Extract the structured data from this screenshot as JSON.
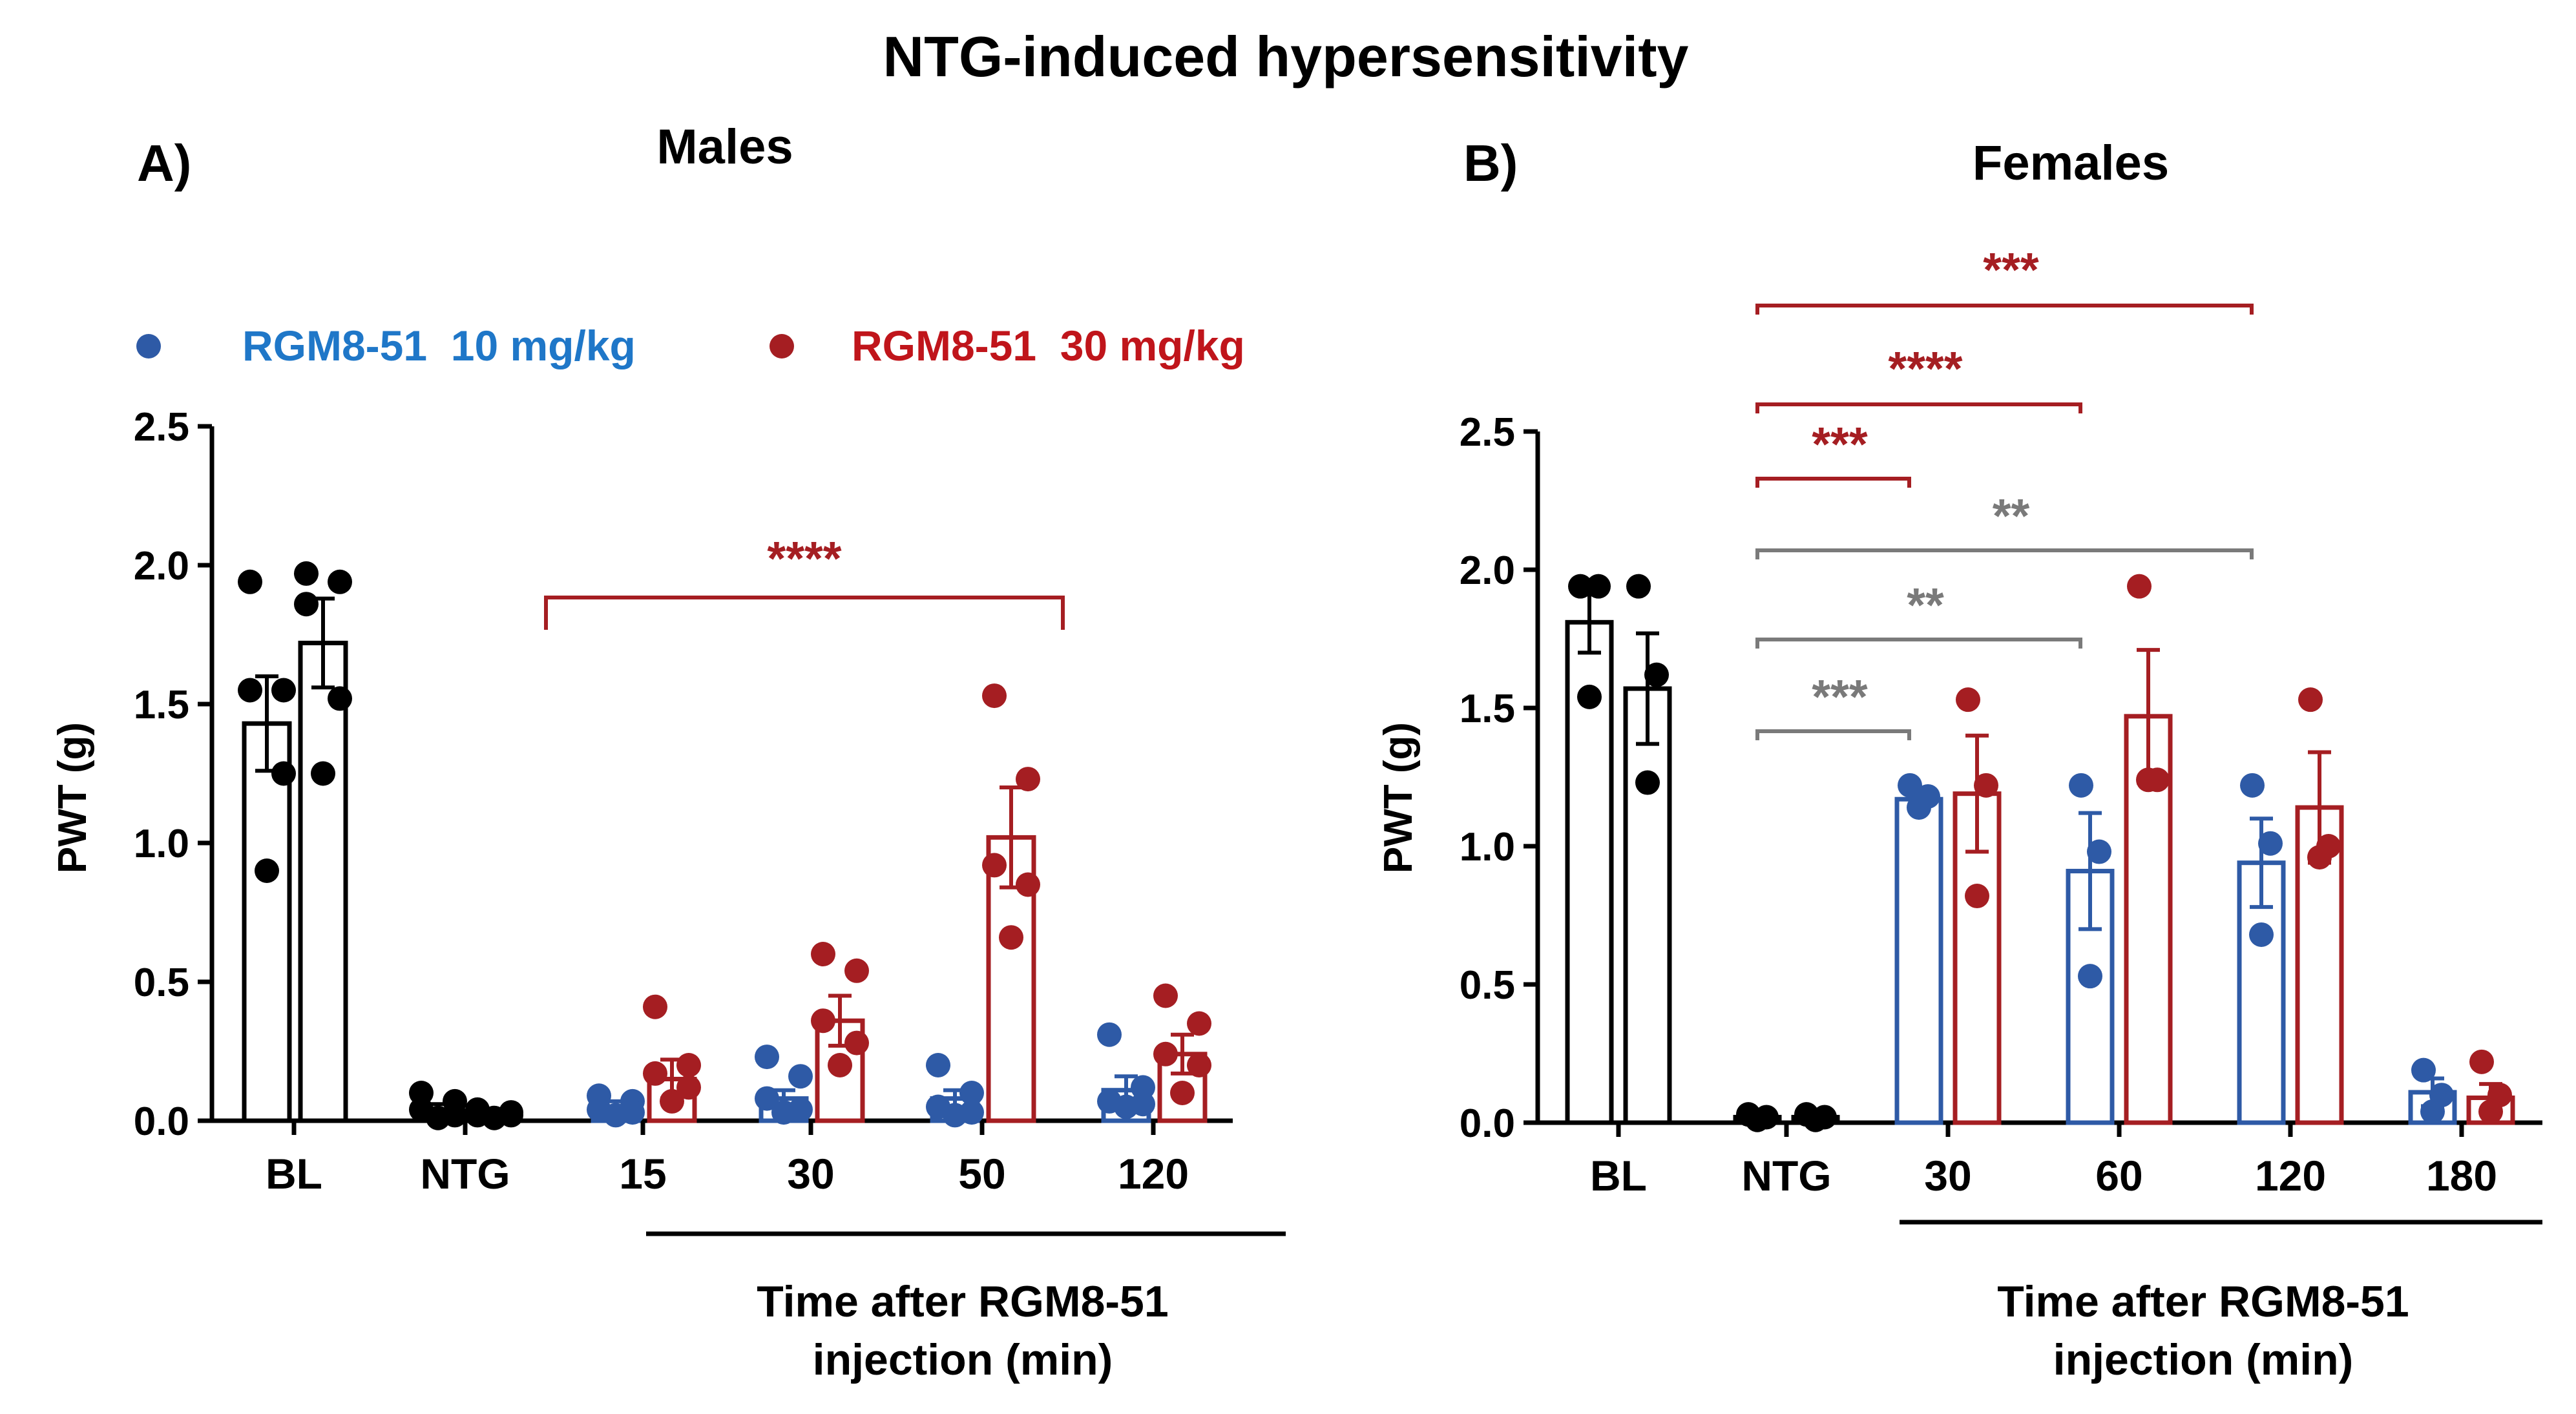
{
  "figure_title": "NTG-induced hypersensitivity",
  "legend": [
    {
      "label": "RGM8-51  10 mg/kg",
      "color": "#2e5aa6",
      "text_color": "#1f77c8"
    },
    {
      "label": "RGM8-51  30 mg/kg",
      "color": "#a51e22",
      "text_color": "#c0151b"
    }
  ],
  "colors": {
    "black": "#000000",
    "blue": "#2e5aa6",
    "red": "#a51e22",
    "gray": "#7a7a7a"
  },
  "chart_data": [
    {
      "type": "bar",
      "panel_label": "A)",
      "title": "Males",
      "ylabel": "PWT (g)",
      "ylim": [
        0,
        2.5
      ],
      "yticks": [
        "0.0",
        "0.5",
        "1.0",
        "1.5",
        "2.0",
        "2.5"
      ],
      "categories": [
        "BL",
        "NTG",
        "15",
        "30",
        "50",
        "120"
      ],
      "xlabel_line1": "Time after RGM8-51",
      "xlabel_line2": "injection (min)",
      "underline_from_category": 2,
      "series": [
        {
          "name": "RGM8-51  10 mg/kg",
          "color_key": "blue",
          "values": [
            1.43,
            0.04,
            0.05,
            0.08,
            0.08,
            0.11
          ],
          "sem": [
            0.17,
            0.02,
            0.02,
            0.03,
            0.03,
            0.05
          ],
          "points": [
            [
              1.94,
              1.55,
              1.55,
              1.25,
              0.9
            ],
            [
              0.1,
              0.07,
              0.04,
              0.02,
              0.01
            ],
            [
              0.09,
              0.07,
              0.04,
              0.03,
              0.02
            ],
            [
              0.23,
              0.16,
              0.08,
              0.04,
              0.03
            ],
            [
              0.2,
              0.1,
              0.05,
              0.03,
              0.02
            ],
            [
              0.31,
              0.12,
              0.07,
              0.06,
              0.05
            ]
          ],
          "point_color_keys": [
            "black",
            "black",
            "blue",
            "blue",
            "blue",
            "blue"
          ],
          "bar_color_keys": [
            "black",
            "black",
            "blue",
            "blue",
            "blue",
            "blue"
          ]
        },
        {
          "name": "RGM8-51  30 mg/kg",
          "color_key": "red",
          "values": [
            1.72,
            0.02,
            0.15,
            0.36,
            1.02,
            0.24
          ],
          "sem": [
            0.16,
            0.01,
            0.07,
            0.09,
            0.18,
            0.07
          ],
          "points": [
            [
              1.97,
              1.94,
              1.86,
              1.52,
              1.25
            ],
            [
              0.04,
              0.03,
              0.02,
              0.02,
              0.01
            ],
            [
              0.41,
              0.2,
              0.17,
              0.12,
              0.07
            ],
            [
              0.6,
              0.54,
              0.36,
              0.28,
              0.2
            ],
            [
              1.53,
              1.23,
              0.92,
              0.85,
              0.66
            ],
            [
              0.45,
              0.35,
              0.24,
              0.2,
              0.1
            ]
          ],
          "point_color_keys": [
            "black",
            "black",
            "red",
            "red",
            "red",
            "red"
          ],
          "bar_color_keys": [
            "black",
            "black",
            "red",
            "red",
            "red",
            "red"
          ]
        }
      ],
      "significance": [
        {
          "label": "****",
          "from_category": 2,
          "to_category": 4,
          "color_key": "red",
          "style": "bracket"
        }
      ]
    },
    {
      "type": "bar",
      "panel_label": "B)",
      "title": "Females",
      "ylabel": "PWT (g)",
      "ylim": [
        0,
        2.5
      ],
      "yticks": [
        "0.0",
        "0.5",
        "1.0",
        "1.5",
        "2.0",
        "2.5"
      ],
      "categories": [
        "BL",
        "NTG",
        "30",
        "60",
        "120",
        "180"
      ],
      "xlabel_line1": "Time after RGM8-51",
      "xlabel_line2": "injection (min)",
      "underline_from_category": 2,
      "series": [
        {
          "name": "RGM8-51  10 mg/kg",
          "color_key": "blue",
          "values": [
            1.81,
            0.02,
            1.17,
            0.91,
            0.94,
            0.11
          ],
          "sem": [
            0.11,
            0.01,
            0.03,
            0.21,
            0.16,
            0.05
          ],
          "points": [
            [
              1.94,
              1.94,
              1.54
            ],
            [
              0.03,
              0.02,
              0.01
            ],
            [
              1.22,
              1.18,
              1.14
            ],
            [
              1.22,
              0.98,
              0.53
            ],
            [
              1.22,
              1.01,
              0.68
            ],
            [
              0.19,
              0.1,
              0.04
            ]
          ],
          "point_color_keys": [
            "black",
            "black",
            "blue",
            "blue",
            "blue",
            "blue"
          ],
          "bar_color_keys": [
            "black",
            "black",
            "blue",
            "blue",
            "blue",
            "blue"
          ]
        },
        {
          "name": "RGM8-51  30 mg/kg",
          "color_key": "red",
          "values": [
            1.57,
            0.02,
            1.19,
            1.47,
            1.14,
            0.09
          ],
          "sem": [
            0.2,
            0.01,
            0.21,
            0.24,
            0.2,
            0.05
          ],
          "points": [
            [
              1.94,
              1.62,
              1.23
            ],
            [
              0.03,
              0.02,
              0.01
            ],
            [
              1.53,
              1.22,
              0.82
            ],
            [
              1.94,
              1.24,
              1.24
            ],
            [
              1.53,
              1.0,
              0.96
            ],
            [
              0.22,
              0.1,
              0.04
            ]
          ],
          "point_color_keys": [
            "black",
            "black",
            "red",
            "red",
            "red",
            "red"
          ],
          "bar_color_keys": [
            "black",
            "black",
            "red",
            "red",
            "red",
            "red"
          ]
        }
      ],
      "significance": [
        {
          "label": "***",
          "from_category": 1,
          "to_category": 4,
          "color_key": "red",
          "style": "line"
        },
        {
          "label": "****",
          "from_category": 1,
          "to_category": 3,
          "color_key": "red",
          "style": "line"
        },
        {
          "label": "***",
          "from_category": 1,
          "to_category": 2,
          "color_key": "red",
          "style": "line"
        },
        {
          "label": "**",
          "from_category": 1,
          "to_category": 4,
          "color_key": "gray",
          "style": "line"
        },
        {
          "label": "**",
          "from_category": 1,
          "to_category": 3,
          "color_key": "gray",
          "style": "line"
        },
        {
          "label": "***",
          "from_category": 1,
          "to_category": 2,
          "color_key": "gray",
          "style": "line"
        }
      ]
    }
  ]
}
